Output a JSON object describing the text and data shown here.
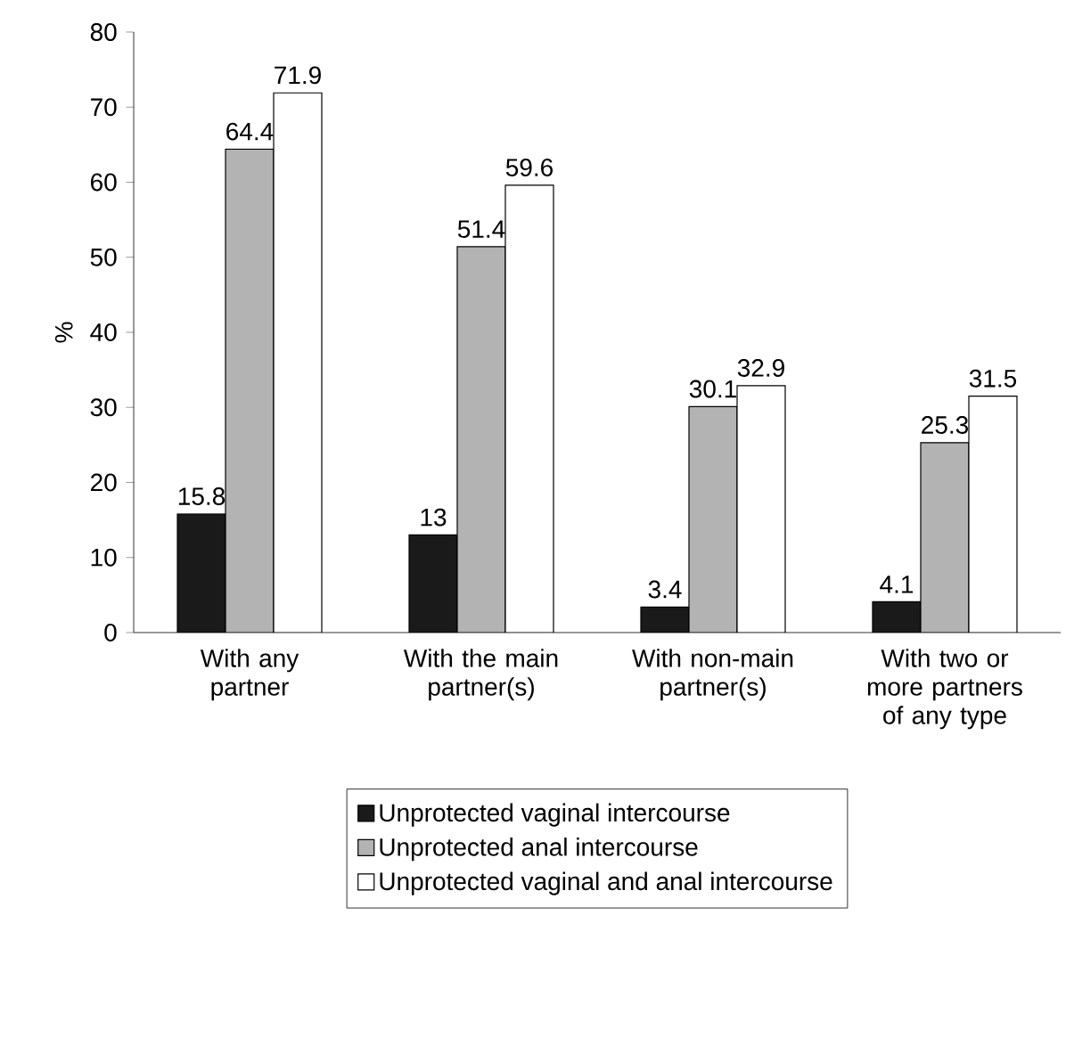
{
  "chart_data": {
    "type": "bar",
    "ylabel": "%",
    "categories": [
      "With any partner",
      "With the main partner(s)",
      "With non-main partner(s)",
      "With two or more partners of any type"
    ],
    "series": [
      {
        "name": "Unprotected vaginal intercourse",
        "color": "#1a1a1a",
        "values": [
          15.8,
          13,
          3.4,
          4.1
        ]
      },
      {
        "name": "Unprotected anal intercourse",
        "color": "#b3b3b3",
        "values": [
          64.4,
          51.4,
          30.1,
          25.3
        ]
      },
      {
        "name": "Unprotected vaginal and anal intercourse",
        "color": "#ffffff",
        "values": [
          71.9,
          59.6,
          32.9,
          31.5
        ]
      }
    ],
    "ylim": [
      0,
      80
    ],
    "yticks": [
      0,
      10,
      20,
      30,
      40,
      50,
      60,
      70,
      80
    ],
    "grid": false,
    "legend": "bottom",
    "data_labels": true
  }
}
